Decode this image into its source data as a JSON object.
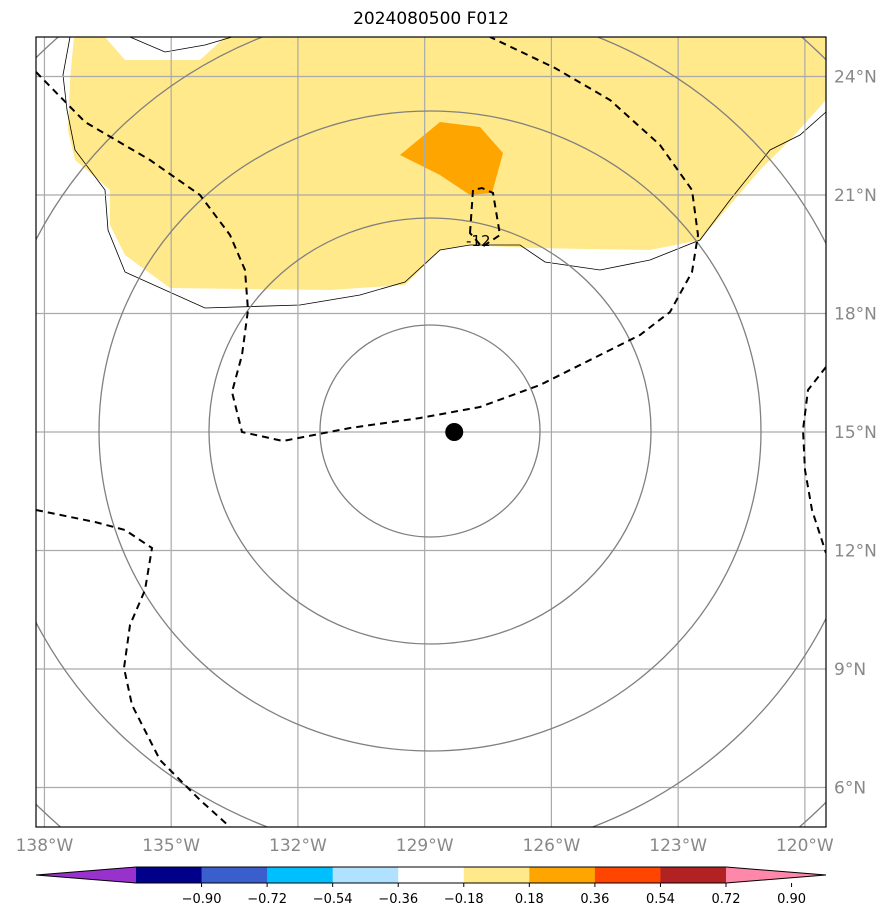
{
  "title": "2024080500 F012",
  "map": {
    "lon_range": [
      -138.2,
      -119.5
    ],
    "lat_range": [
      5.0,
      25.0
    ],
    "center_marker": {
      "lon": -128.3,
      "lat": 15.0,
      "name": "storm-center"
    },
    "lon_ticks": [
      {
        "value": -138,
        "label": "138°W"
      },
      {
        "value": -135,
        "label": "135°W"
      },
      {
        "value": -132,
        "label": "132°W"
      },
      {
        "value": -129,
        "label": "129°W"
      },
      {
        "value": -126,
        "label": "126°W"
      },
      {
        "value": -123,
        "label": "123°W"
      },
      {
        "value": -120,
        "label": "120°W"
      }
    ],
    "lat_ticks": [
      {
        "value": 24,
        "label": "24°N"
      },
      {
        "value": 21,
        "label": "21°N"
      },
      {
        "value": 18,
        "label": "18°N"
      },
      {
        "value": 15,
        "label": "15°N"
      },
      {
        "value": 12,
        "label": "12°N"
      },
      {
        "value": 9,
        "label": "9°N"
      },
      {
        "value": 6,
        "label": "6°N"
      }
    ],
    "contour_label": "-12"
  },
  "colorbar": {
    "boundaries": [
      -0.9,
      -0.72,
      -0.54,
      -0.36,
      -0.18,
      0.18,
      0.36,
      0.54,
      0.72,
      0.9
    ],
    "tick_labels": [
      "−0.90",
      "−0.72",
      "−0.54",
      "−0.36",
      "−0.18",
      "0.18",
      "0.36",
      "0.54",
      "0.72",
      "0.90"
    ],
    "colors": [
      "#9932cc",
      "#00008b",
      "#3a5fcd",
      "#00bfff",
      "#b0e2ff",
      "#ffffff",
      "#ffe98a",
      "#ffa500",
      "#ff4500",
      "#b22222",
      "#ff88aa"
    ]
  }
}
